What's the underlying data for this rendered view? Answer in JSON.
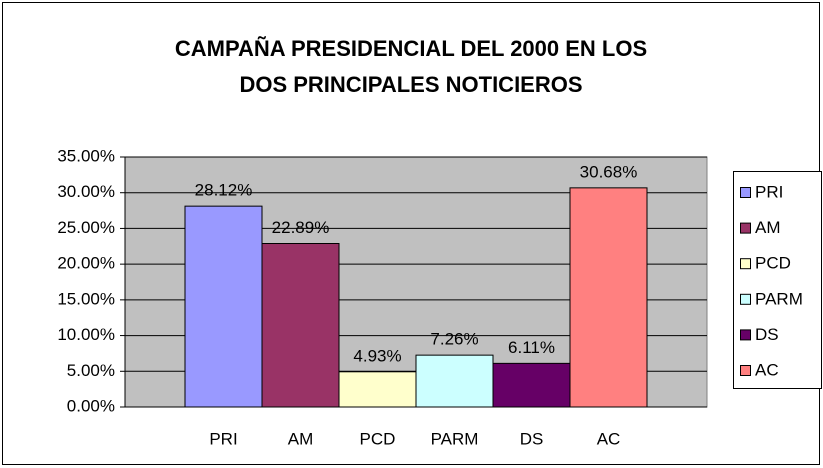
{
  "chart_data": {
    "type": "bar",
    "title": [
      "CAMPAÑA PRESIDENCIAL DEL 2000 EN LOS",
      "DOS PRINCIPALES NOTICIEROS"
    ],
    "categories": [
      "PRI",
      "AM",
      "PCD",
      "PARM",
      "DS",
      "AC"
    ],
    "values": [
      28.12,
      22.89,
      4.93,
      7.26,
      6.11,
      30.68
    ],
    "value_labels": [
      "28.12%",
      "22.89%",
      "4.93%",
      "7.26%",
      "6.11%",
      "30.68%"
    ],
    "colors": [
      "#9999ff",
      "#993366",
      "#ffffcc",
      "#ccffff",
      "#660066",
      "#ff8080"
    ],
    "ylim": [
      0,
      35
    ],
    "yticks": [
      {
        "value": 0,
        "label": "0.00%"
      },
      {
        "value": 5,
        "label": "5.00%"
      },
      {
        "value": 10,
        "label": "10.00%"
      },
      {
        "value": 15,
        "label": "15.00%"
      },
      {
        "value": 20,
        "label": "20.00%"
      },
      {
        "value": 25,
        "label": "25.00%"
      },
      {
        "value": 30,
        "label": "30.00%"
      },
      {
        "value": 35,
        "label": "35.00%"
      }
    ],
    "grid": true,
    "legend": "right"
  }
}
